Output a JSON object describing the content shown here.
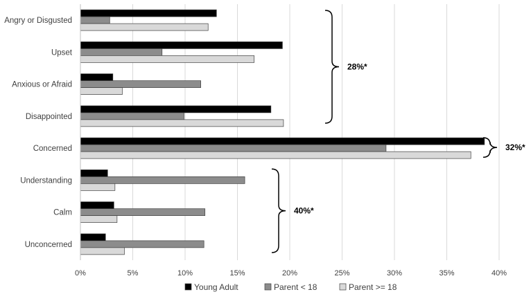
{
  "chart_data": {
    "type": "bar",
    "orientation": "horizontal",
    "categories": [
      "Angry or Disgusted",
      "Upset",
      "Anxious or Afraid",
      "Disappointed",
      "Concerned",
      "Understanding",
      "Calm",
      "Unconcerned"
    ],
    "series": [
      {
        "name": "Young Adult",
        "color": "#000000",
        "values": [
          13.0,
          19.3,
          3.1,
          18.2,
          38.6,
          2.6,
          3.2,
          2.4
        ]
      },
      {
        "name": "Parent < 18",
        "color": "#8c8c8c",
        "values": [
          2.8,
          7.8,
          11.5,
          9.9,
          29.2,
          15.7,
          11.9,
          11.8
        ]
      },
      {
        "name": "Parent >= 18",
        "color": "#d9d9d9",
        "values": [
          12.2,
          16.6,
          4.0,
          19.4,
          37.3,
          3.3,
          3.5,
          4.2
        ]
      }
    ],
    "x_ticks": [
      "0%",
      "5%",
      "10%",
      "15%",
      "20%",
      "25%",
      "30%",
      "35%",
      "40%"
    ],
    "xlim": [
      0,
      40
    ],
    "grid": "vertical",
    "legend_position": "bottom",
    "annotations": [
      {
        "text": "28%*",
        "from_category": "Angry or Disgusted",
        "to_category": "Disappointed"
      },
      {
        "text": "32%*",
        "from_category": "Concerned",
        "to_category": "Concerned"
      },
      {
        "text": "40%*",
        "from_category": "Understanding",
        "to_category": "Unconcerned"
      }
    ]
  }
}
